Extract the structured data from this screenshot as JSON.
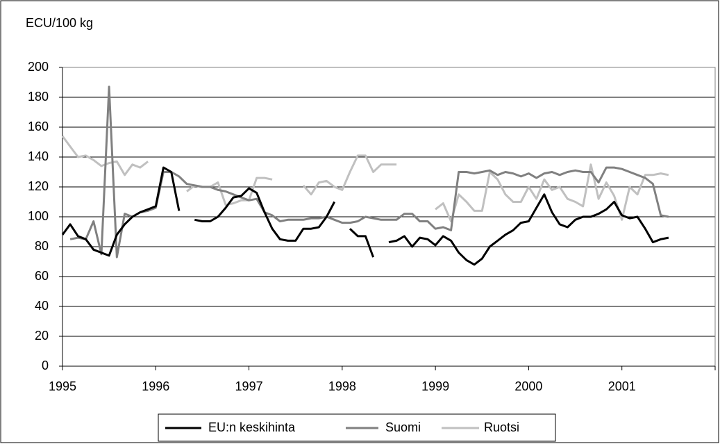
{
  "chart_data": {
    "type": "line",
    "y_label": "ECU/100 kg",
    "x": [
      1995,
      1995.083,
      1995.167,
      1995.25,
      1995.333,
      1995.417,
      1995.5,
      1995.583,
      1995.667,
      1995.75,
      1995.833,
      1995.917,
      1996,
      1996.083,
      1996.167,
      1996.25,
      1996.333,
      1996.417,
      1996.5,
      1996.583,
      1996.667,
      1996.75,
      1996.833,
      1996.917,
      1997,
      1997.083,
      1997.167,
      1997.25,
      1997.333,
      1997.417,
      1997.5,
      1997.583,
      1997.667,
      1997.75,
      1997.833,
      1997.917,
      1998,
      1998.083,
      1998.167,
      1998.25,
      1998.333,
      1998.417,
      1998.5,
      1998.583,
      1998.667,
      1998.75,
      1998.833,
      1998.917,
      1999,
      1999.083,
      1999.167,
      1999.25,
      1999.333,
      1999.417,
      1999.5,
      1999.583,
      1999.667,
      1999.75,
      1999.833,
      1999.917,
      2000,
      2000.083,
      2000.167,
      2000.25,
      2000.333,
      2000.417,
      2000.5,
      2000.583,
      2000.667,
      2000.75,
      2000.833,
      2000.917,
      2001,
      2001.083,
      2001.167,
      2001.25,
      2001.333,
      2001.417,
      2001.5
    ],
    "series": [
      {
        "name": "EU:n keskihinta",
        "color": "#000000",
        "values": [
          88,
          95,
          87,
          85,
          78,
          76,
          74,
          88,
          95,
          100,
          103,
          105,
          107,
          133,
          130,
          104,
          null,
          98,
          97,
          97,
          100,
          106,
          113,
          114,
          119,
          116,
          103,
          92,
          85,
          84,
          84,
          92,
          92,
          93,
          100,
          110,
          null,
          92,
          87,
          87,
          73,
          null,
          83,
          84,
          87,
          80,
          86,
          85,
          81,
          87,
          84,
          76,
          71,
          68,
          72,
          80,
          84,
          88,
          91,
          96,
          97,
          106,
          115,
          103,
          95,
          93,
          98,
          100,
          100,
          102,
          105,
          110,
          101,
          99,
          100,
          92,
          83,
          85,
          86
        ]
      },
      {
        "name": "Suomi",
        "color": "#808080",
        "values": [
          null,
          85,
          86,
          85,
          97,
          75,
          187,
          73,
          102,
          100,
          103,
          104,
          106,
          130,
          130,
          127,
          122,
          121,
          120,
          120,
          118,
          117,
          115,
          113,
          111,
          112,
          103,
          101,
          97,
          98,
          98,
          98,
          99,
          99,
          100,
          98,
          96,
          96,
          97,
          100,
          99,
          98,
          98,
          98,
          102,
          102,
          97,
          97,
          92,
          93,
          91,
          130,
          130,
          129,
          130,
          131,
          128,
          130,
          129,
          127,
          129,
          126,
          129,
          130,
          128,
          130,
          131,
          130,
          130,
          123,
          133,
          133,
          132,
          130,
          128,
          126,
          122,
          101,
          100
        ]
      },
      {
        "name": "Ruotsi",
        "color": "#c0c0c0",
        "values": [
          154,
          147,
          140,
          141,
          138,
          134,
          136,
          137,
          128,
          135,
          133,
          137,
          null,
          null,
          null,
          null,
          117,
          121,
          120,
          120,
          123,
          108,
          109,
          111,
          111,
          126,
          126,
          125,
          null,
          122,
          null,
          121,
          115,
          123,
          124,
          120,
          118,
          130,
          141,
          141,
          130,
          135,
          135,
          135,
          null,
          null,
          null,
          null,
          105,
          109,
          97,
          115,
          110,
          104,
          104,
          130,
          125,
          115,
          110,
          110,
          120,
          112,
          125,
          118,
          120,
          112,
          110,
          107,
          135,
          112,
          123,
          114,
          98,
          120,
          115,
          128,
          128,
          129,
          128
        ]
      }
    ],
    "xlim": [
      1995,
      2002
    ],
    "xticks": [
      1995,
      1996,
      1997,
      1998,
      1999,
      2000,
      2001
    ],
    "ylim": [
      0,
      200
    ],
    "yticks": [
      0,
      20,
      40,
      60,
      80,
      100,
      120,
      140,
      160,
      180,
      200
    ],
    "grid": true,
    "legend": "bottom"
  }
}
